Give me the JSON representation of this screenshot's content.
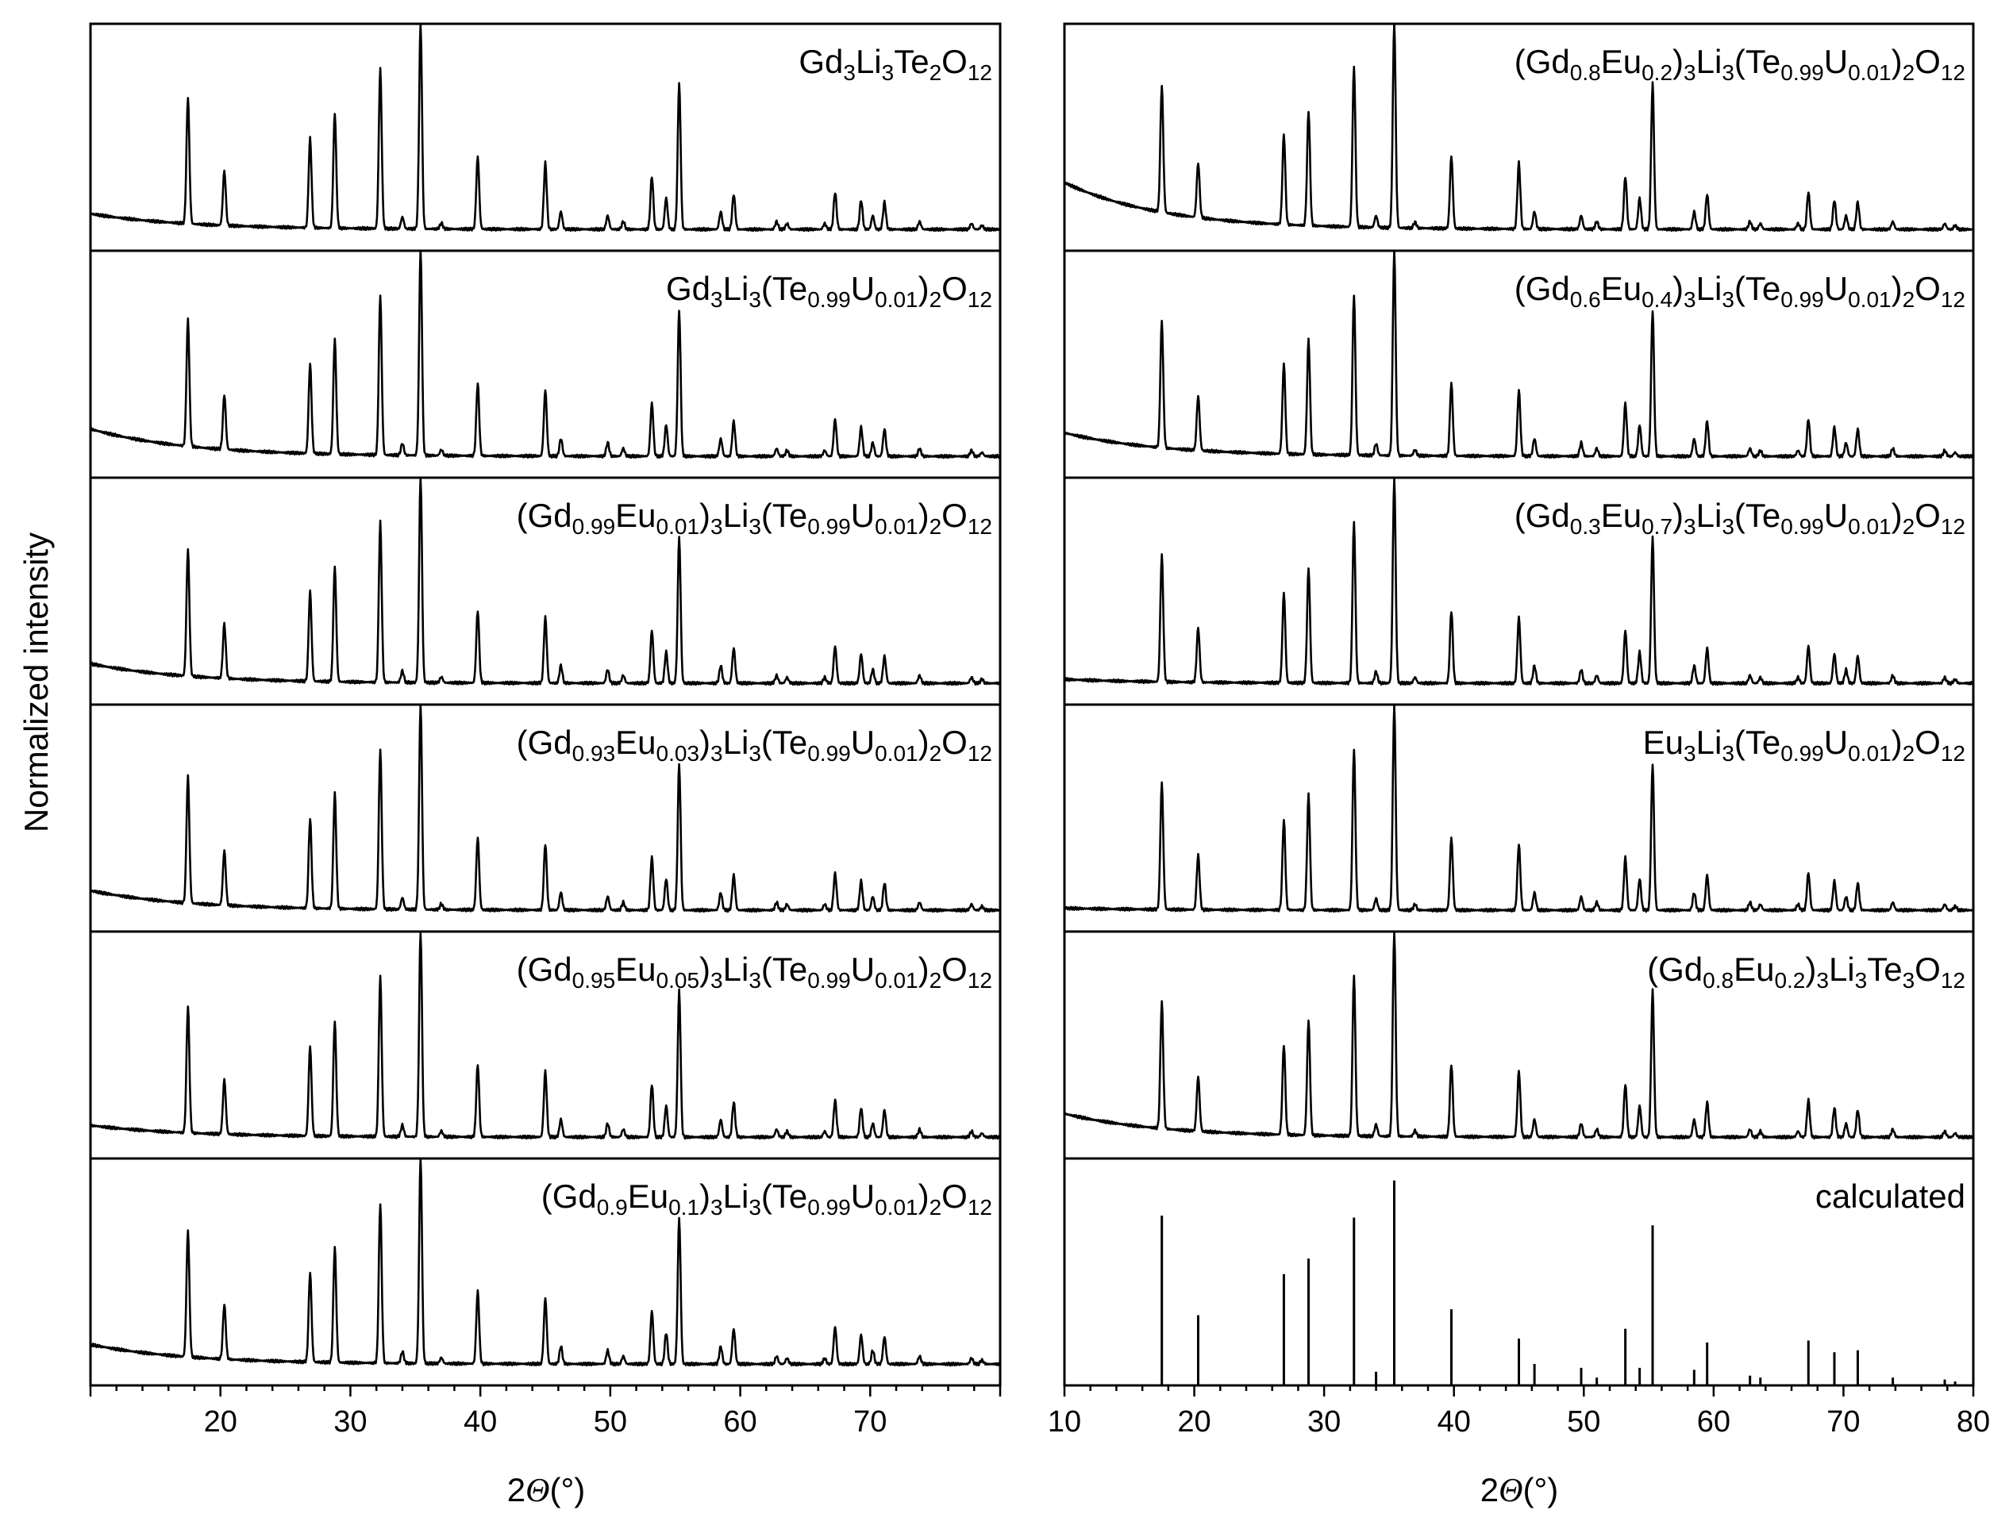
{
  "chart_data": {
    "type": "line",
    "ylabel": "Normalized intensity",
    "xlabel": "2Θ(°)",
    "xlabel_parts": [
      "2",
      "Θ",
      "(°)"
    ],
    "xlim": [
      10,
      80
    ],
    "left_xlim": [
      10,
      80
    ],
    "left_ticks": [
      20,
      30,
      40,
      50,
      60,
      70
    ],
    "right_ticks": [
      10,
      20,
      30,
      40,
      50,
      60,
      70,
      80
    ],
    "peaks": [
      {
        "x": 17.5,
        "h": 0.65
      },
      {
        "x": 20.3,
        "h": 0.28
      },
      {
        "x": 26.9,
        "h": 0.46
      },
      {
        "x": 28.8,
        "h": 0.59
      },
      {
        "x": 32.3,
        "h": 0.82
      },
      {
        "x": 34.0,
        "h": 0.06
      },
      {
        "x": 35.4,
        "h": 1.05
      },
      {
        "x": 37.0,
        "h": 0.03
      },
      {
        "x": 39.8,
        "h": 0.37
      },
      {
        "x": 45.0,
        "h": 0.34
      },
      {
        "x": 46.2,
        "h": 0.09
      },
      {
        "x": 49.8,
        "h": 0.07
      },
      {
        "x": 51.0,
        "h": 0.04
      },
      {
        "x": 53.2,
        "h": 0.27
      },
      {
        "x": 54.3,
        "h": 0.16
      },
      {
        "x": 55.3,
        "h": 0.75
      },
      {
        "x": 58.5,
        "h": 0.09
      },
      {
        "x": 59.5,
        "h": 0.18
      },
      {
        "x": 62.8,
        "h": 0.04
      },
      {
        "x": 63.6,
        "h": 0.03
      },
      {
        "x": 66.5,
        "h": 0.03
      },
      {
        "x": 67.3,
        "h": 0.19
      },
      {
        "x": 69.3,
        "h": 0.15
      },
      {
        "x": 70.2,
        "h": 0.07
      },
      {
        "x": 71.1,
        "h": 0.14
      },
      {
        "x": 73.8,
        "h": 0.04
      },
      {
        "x": 77.8,
        "h": 0.03
      },
      {
        "x": 78.6,
        "h": 0.02
      }
    ],
    "calculated_sticks": [
      {
        "x": 17.5,
        "h": 0.87
      },
      {
        "x": 20.3,
        "h": 0.36
      },
      {
        "x": 26.9,
        "h": 0.57
      },
      {
        "x": 28.8,
        "h": 0.65
      },
      {
        "x": 32.3,
        "h": 0.86
      },
      {
        "x": 34.0,
        "h": 0.07
      },
      {
        "x": 35.4,
        "h": 1.05
      },
      {
        "x": 39.8,
        "h": 0.39
      },
      {
        "x": 45.0,
        "h": 0.24
      },
      {
        "x": 46.2,
        "h": 0.11
      },
      {
        "x": 49.8,
        "h": 0.09
      },
      {
        "x": 51.0,
        "h": 0.04
      },
      {
        "x": 53.2,
        "h": 0.29
      },
      {
        "x": 54.3,
        "h": 0.09
      },
      {
        "x": 55.3,
        "h": 0.82
      },
      {
        "x": 58.5,
        "h": 0.08
      },
      {
        "x": 59.5,
        "h": 0.22
      },
      {
        "x": 62.8,
        "h": 0.05
      },
      {
        "x": 63.6,
        "h": 0.04
      },
      {
        "x": 67.3,
        "h": 0.23
      },
      {
        "x": 69.3,
        "h": 0.17
      },
      {
        "x": 71.1,
        "h": 0.18
      },
      {
        "x": 73.8,
        "h": 0.04
      },
      {
        "x": 77.8,
        "h": 0.03
      },
      {
        "x": 78.6,
        "h": 0.02
      }
    ],
    "panels": [
      {
        "column": "left",
        "row": 0,
        "kind": "pattern",
        "baseline": [
          0.1,
          0.02
        ],
        "title_parts": [
          [
            "Gd",
            ""
          ],
          [
            "3",
            "sub"
          ],
          [
            "Li",
            ""
          ],
          [
            "3",
            "sub"
          ],
          [
            "Te",
            ""
          ],
          [
            "2",
            "sub"
          ],
          [
            "O",
            ""
          ],
          [
            "12",
            "sub"
          ]
        ]
      },
      {
        "column": "left",
        "row": 1,
        "kind": "pattern",
        "baseline": [
          0.16,
          0.02
        ],
        "title_parts": [
          [
            "Gd",
            ""
          ],
          [
            "3",
            "sub"
          ],
          [
            "Li",
            ""
          ],
          [
            "3",
            "sub"
          ],
          [
            "(Te",
            ""
          ],
          [
            "0.99",
            "sub"
          ],
          [
            "U",
            ""
          ],
          [
            "0.01",
            "sub"
          ],
          [
            ")",
            ""
          ],
          [
            "2",
            "sub"
          ],
          [
            "O",
            ""
          ],
          [
            "12",
            "sub"
          ]
        ]
      },
      {
        "column": "left",
        "row": 2,
        "kind": "pattern",
        "baseline": [
          0.12,
          0.02
        ],
        "title_parts": [
          [
            "(Gd",
            ""
          ],
          [
            "0.99",
            "sub"
          ],
          [
            "Eu",
            ""
          ],
          [
            "0.01",
            "sub"
          ],
          [
            ")",
            ""
          ],
          [
            "3",
            "sub"
          ],
          [
            "Li",
            ""
          ],
          [
            "3",
            "sub"
          ],
          [
            "(Te",
            ""
          ],
          [
            "0.99",
            "sub"
          ],
          [
            "U",
            ""
          ],
          [
            "0.01",
            "sub"
          ],
          [
            ")",
            ""
          ],
          [
            "2",
            "sub"
          ],
          [
            "O",
            ""
          ],
          [
            "12",
            "sub"
          ]
        ]
      },
      {
        "column": "left",
        "row": 3,
        "kind": "pattern",
        "baseline": [
          0.12,
          0.02
        ],
        "title_parts": [
          [
            "(Gd",
            ""
          ],
          [
            "0.93",
            "sub"
          ],
          [
            "Eu",
            ""
          ],
          [
            "0.03",
            "sub"
          ],
          [
            ")",
            ""
          ],
          [
            "3",
            "sub"
          ],
          [
            "Li",
            ""
          ],
          [
            "3",
            "sub"
          ],
          [
            "(Te",
            ""
          ],
          [
            "0.99",
            "sub"
          ],
          [
            "U",
            ""
          ],
          [
            "0.01",
            "sub"
          ],
          [
            ")",
            ""
          ],
          [
            "2",
            "sub"
          ],
          [
            "O",
            ""
          ],
          [
            "12",
            "sub"
          ]
        ]
      },
      {
        "column": "left",
        "row": 4,
        "kind": "pattern",
        "baseline": [
          0.08,
          0.02
        ],
        "title_parts": [
          [
            "(Gd",
            ""
          ],
          [
            "0.95",
            "sub"
          ],
          [
            "Eu",
            ""
          ],
          [
            "0.05",
            "sub"
          ],
          [
            ")",
            ""
          ],
          [
            "3",
            "sub"
          ],
          [
            "Li",
            ""
          ],
          [
            "3",
            "sub"
          ],
          [
            "(Te",
            ""
          ],
          [
            "0.99",
            "sub"
          ],
          [
            "U",
            ""
          ],
          [
            "0.01",
            "sub"
          ],
          [
            ")",
            ""
          ],
          [
            "2",
            "sub"
          ],
          [
            "O",
            ""
          ],
          [
            "12",
            "sub"
          ]
        ]
      },
      {
        "column": "left",
        "row": 5,
        "kind": "pattern",
        "baseline": [
          0.12,
          0.02
        ],
        "title_parts": [
          [
            "(Gd",
            ""
          ],
          [
            "0.9",
            "sub"
          ],
          [
            "Eu",
            ""
          ],
          [
            "0.1",
            "sub"
          ],
          [
            ")",
            ""
          ],
          [
            "3",
            "sub"
          ],
          [
            "Li",
            ""
          ],
          [
            "3",
            "sub"
          ],
          [
            "(Te",
            ""
          ],
          [
            "0.99",
            "sub"
          ],
          [
            "U",
            ""
          ],
          [
            "0.01",
            "sub"
          ],
          [
            ")",
            ""
          ],
          [
            "2",
            "sub"
          ],
          [
            "O",
            ""
          ],
          [
            "12",
            "sub"
          ]
        ]
      },
      {
        "column": "right",
        "row": 0,
        "kind": "pattern",
        "baseline": [
          0.26,
          0.02
        ],
        "title_parts": [
          [
            "(Gd",
            ""
          ],
          [
            "0.8",
            "sub"
          ],
          [
            "Eu",
            ""
          ],
          [
            "0.2",
            "sub"
          ],
          [
            ")",
            ""
          ],
          [
            "3",
            "sub"
          ],
          [
            "Li",
            ""
          ],
          [
            "3",
            "sub"
          ],
          [
            "(Te",
            ""
          ],
          [
            "0.99",
            "sub"
          ],
          [
            "U",
            ""
          ],
          [
            "0.01",
            "sub"
          ],
          [
            ")",
            ""
          ],
          [
            "2",
            "sub"
          ],
          [
            "O",
            ""
          ],
          [
            "12",
            "sub"
          ]
        ]
      },
      {
        "column": "right",
        "row": 1,
        "kind": "pattern",
        "baseline": [
          0.14,
          0.02
        ],
        "title_parts": [
          [
            "(Gd",
            ""
          ],
          [
            "0.6",
            "sub"
          ],
          [
            "Eu",
            ""
          ],
          [
            "0.4",
            "sub"
          ],
          [
            ")",
            ""
          ],
          [
            "3",
            "sub"
          ],
          [
            "Li",
            ""
          ],
          [
            "3",
            "sub"
          ],
          [
            "(Te",
            ""
          ],
          [
            "0.99",
            "sub"
          ],
          [
            "U",
            ""
          ],
          [
            "0.01",
            "sub"
          ],
          [
            ")",
            ""
          ],
          [
            "2",
            "sub"
          ],
          [
            "O",
            ""
          ],
          [
            "12",
            "sub"
          ]
        ]
      },
      {
        "column": "right",
        "row": 2,
        "kind": "pattern",
        "baseline": [
          0.04,
          0.02
        ],
        "title_parts": [
          [
            "(Gd",
            ""
          ],
          [
            "0.3",
            "sub"
          ],
          [
            "Eu",
            ""
          ],
          [
            "0.7",
            "sub"
          ],
          [
            ")",
            ""
          ],
          [
            "3",
            "sub"
          ],
          [
            "Li",
            ""
          ],
          [
            "3",
            "sub"
          ],
          [
            "(Te",
            ""
          ],
          [
            "0.99",
            "sub"
          ],
          [
            "U",
            ""
          ],
          [
            "0.01",
            "sub"
          ],
          [
            ")",
            ""
          ],
          [
            "2",
            "sub"
          ],
          [
            "O",
            ""
          ],
          [
            "12",
            "sub"
          ]
        ]
      },
      {
        "column": "right",
        "row": 3,
        "kind": "pattern",
        "baseline": [
          0.03,
          0.02
        ],
        "title_parts": [
          [
            "Eu",
            ""
          ],
          [
            "3",
            "sub"
          ],
          [
            "Li",
            ""
          ],
          [
            "3",
            "sub"
          ],
          [
            "(Te",
            ""
          ],
          [
            "0.99",
            "sub"
          ],
          [
            "U",
            ""
          ],
          [
            "0.01",
            "sub"
          ],
          [
            ")",
            ""
          ],
          [
            "2",
            "sub"
          ],
          [
            "O",
            ""
          ],
          [
            "12",
            "sub"
          ]
        ]
      },
      {
        "column": "right",
        "row": 4,
        "kind": "pattern",
        "baseline": [
          0.14,
          0.02
        ],
        "title_parts": [
          [
            "(Gd",
            ""
          ],
          [
            "0.8",
            "sub"
          ],
          [
            "Eu",
            ""
          ],
          [
            "0.2",
            "sub"
          ],
          [
            ")",
            ""
          ],
          [
            "3",
            "sub"
          ],
          [
            "Li",
            ""
          ],
          [
            "3",
            "sub"
          ],
          [
            "Te",
            ""
          ],
          [
            "3",
            "sub"
          ],
          [
            "O",
            ""
          ],
          [
            "12",
            "sub"
          ]
        ]
      },
      {
        "column": "right",
        "row": 5,
        "kind": "calculated",
        "baseline": [
          0,
          0
        ],
        "title_parts": [
          [
            "calculated",
            ""
          ]
        ]
      }
    ]
  }
}
